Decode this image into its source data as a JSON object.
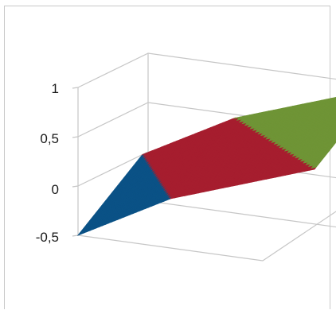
{
  "chart_data": {
    "type": "surface",
    "title": "",
    "xlabel": "",
    "ylabel": "",
    "zlabel": "",
    "zlim": [
      -0.5,
      1
    ],
    "z_ticks": [
      "1",
      "0,5",
      "0",
      "-0,5"
    ],
    "grid": true,
    "legend": "none",
    "surface_rows": [
      [
        -0.5,
        0.0,
        0.5
      ],
      [
        0.0,
        0.5,
        1.0
      ]
    ],
    "bands": [
      {
        "range": [
          -0.5,
          0
        ],
        "color": "#0b5286"
      },
      {
        "range": [
          0,
          0.5
        ],
        "color": "#a61e2f"
      },
      {
        "range": [
          0.5,
          1
        ],
        "color": "#6f9436"
      }
    ]
  }
}
